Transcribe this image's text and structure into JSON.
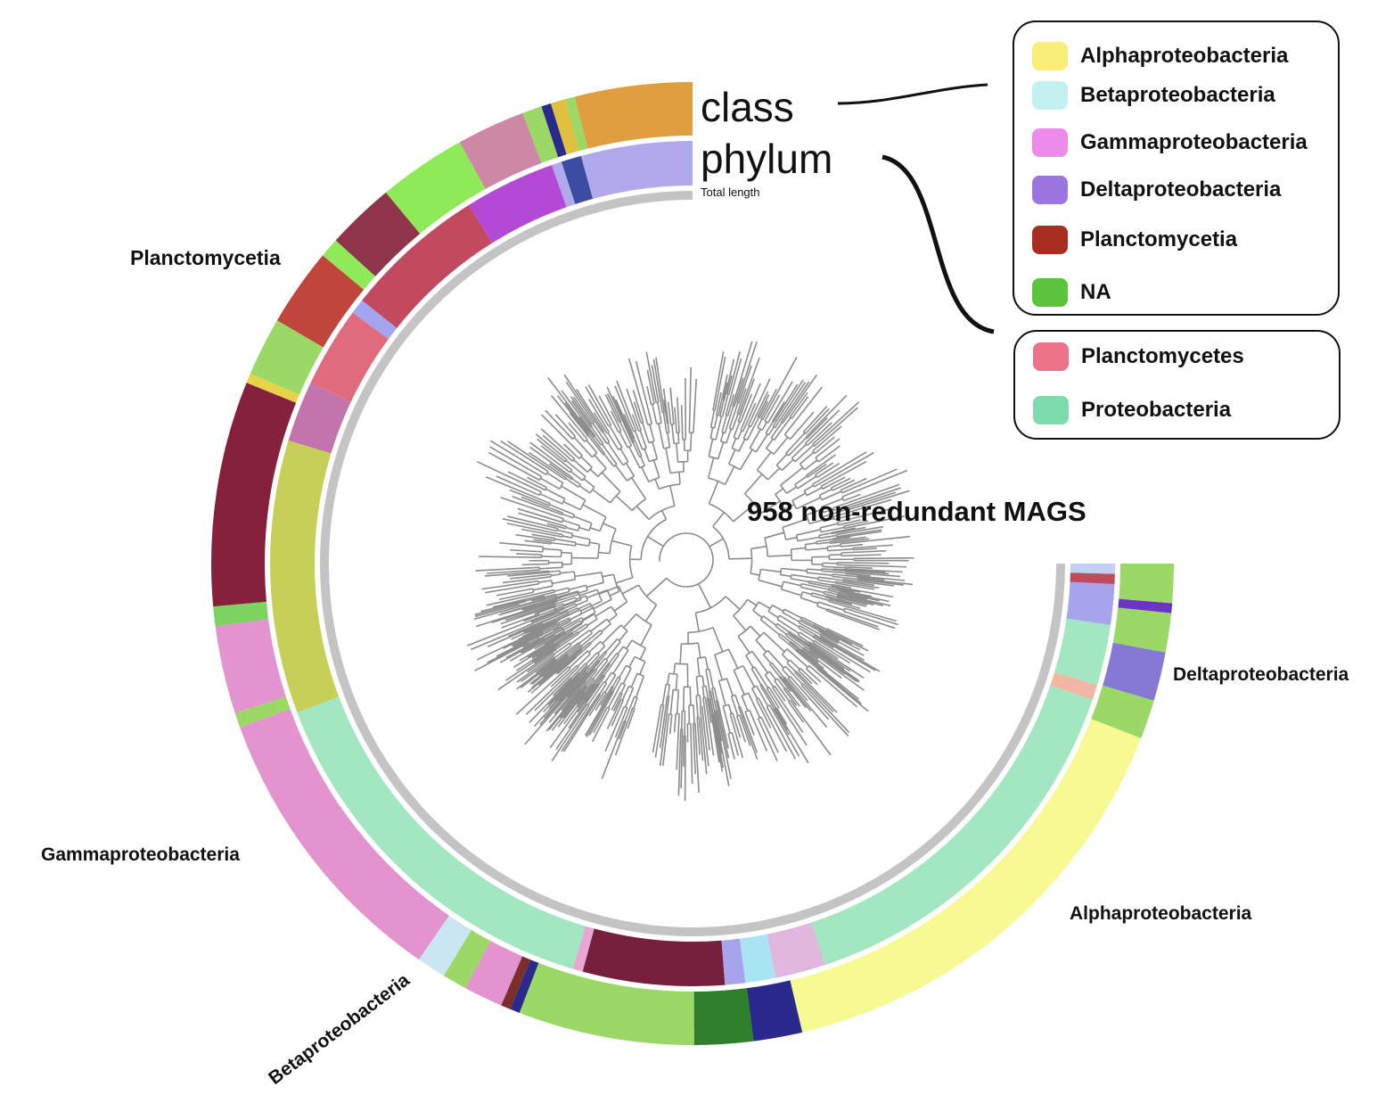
{
  "title": "958 non-redundant MAGS",
  "ring_labels": {
    "class": "class",
    "phylum": "phylum",
    "total_length": "Total length"
  },
  "taxon_labels": [
    "Planctomycetia",
    "Gammaproteobacteria",
    "Betaproteobacteria",
    "Alphaproteobacteria",
    "Deltaproteobacteria"
  ],
  "legend_class": {
    "items": [
      {
        "label": "Alphaproteobacteria",
        "color": "#f9ef78"
      },
      {
        "label": "Betaproteobacteria",
        "color": "#c3f1ef"
      },
      {
        "label": "Gammaproteobacteria",
        "color": "#ee8aec"
      },
      {
        "label": "Deltaproteobacteria",
        "color": "#9b75e0"
      },
      {
        "label": "Planctomycetia",
        "color": "#a92e22"
      },
      {
        "label": "NA",
        "color": "#5cc43c"
      }
    ]
  },
  "legend_phylum": {
    "items": [
      {
        "label": "Planctomycetes",
        "color": "#ec7389"
      },
      {
        "label": "Proteobacteria",
        "color": "#7cdcab"
      }
    ]
  },
  "rings": {
    "outer": [
      {
        "color": "#e09f3e",
        "span": 12
      },
      {
        "color": "#9bd866",
        "span": 1
      },
      {
        "color": "#e2c03f",
        "span": 1.5
      },
      {
        "color": "#2a2a8c",
        "span": 1
      },
      {
        "color": "#9bd866",
        "span": 2
      },
      {
        "color": "#cc88a4",
        "span": 7
      },
      {
        "color": "#8fea5a",
        "span": 9
      },
      {
        "color": "#8f354b",
        "span": 7
      },
      {
        "color": "#8fea5a",
        "span": 2
      },
      {
        "color": "#c0453a",
        "span": 8
      },
      {
        "color": "#9bd866",
        "span": 6
      },
      {
        "color": "#e7d347",
        "span": 1
      },
      {
        "color": "#85203d",
        "span": 23
      },
      {
        "color": "#7dd35f",
        "span": 2
      },
      {
        "color": "#e394cf",
        "span": 9
      },
      {
        "color": "#9bd866",
        "span": 1.5
      },
      {
        "color": "#e394cf",
        "span": 30
      },
      {
        "color": "#c9e6f2",
        "span": 3
      },
      {
        "color": "#9bd866",
        "span": 2.5
      },
      {
        "color": "#e394cf",
        "span": 4
      },
      {
        "color": "#7a2f2a",
        "span": 1
      },
      {
        "color": "#2a2a8c",
        "span": 1
      },
      {
        "color": "#9bd866",
        "span": 18
      },
      {
        "color": "#2f7f2a",
        "span": 6
      },
      {
        "color": "#2a2a8c",
        "span": 5
      },
      {
        "color": "#f7f992",
        "span": 11
      },
      {
        "color": "#f7f992",
        "span": 22
      },
      {
        "color": "#f7f992",
        "span": 14
      },
      {
        "color": "#9bd866",
        "span": 4
      },
      {
        "color": "#8579d4",
        "span": 5
      },
      {
        "color": "#9bd866",
        "span": 4
      },
      {
        "color": "#6b34c5",
        "span": 1
      },
      {
        "color": "#9bd866",
        "span": 4
      }
    ],
    "inner": [
      {
        "color": "#b0a9ec",
        "span": 11
      },
      {
        "color": "#3c4ca0",
        "span": 2
      },
      {
        "color": "#b0a9ec",
        "span": 1
      },
      {
        "color": "#b349d4",
        "span": 9
      },
      {
        "color": "#c24a5e",
        "span": 14
      },
      {
        "color": "#a3a5ee",
        "span": 1.5
      },
      {
        "color": "#df6b7d",
        "span": 8
      },
      {
        "color": "#c374ad",
        "span": 6
      },
      {
        "color": "#c6cf58",
        "span": 27
      },
      {
        "color": "#a2e6c2",
        "span": 30
      },
      {
        "color": "#a2e6c2",
        "span": 8
      },
      {
        "color": "#e6a8d2",
        "span": 1
      },
      {
        "color": "#741f3c",
        "span": 14
      },
      {
        "color": "#a6a4ec",
        "span": 2
      },
      {
        "color": "#a9e4f2",
        "span": 3
      },
      {
        "color": "#e2b7de",
        "span": 5
      },
      {
        "color": "#a2e6c2",
        "span": 38
      },
      {
        "color": "#f2b7a4",
        "span": 1.5
      },
      {
        "color": "#a2e6c2",
        "span": 6
      },
      {
        "color": "#a6a4ec",
        "span": 4
      },
      {
        "color": "#c24a5e",
        "span": 1
      },
      {
        "color": "#c3d0f4",
        "span": 1
      }
    ]
  }
}
